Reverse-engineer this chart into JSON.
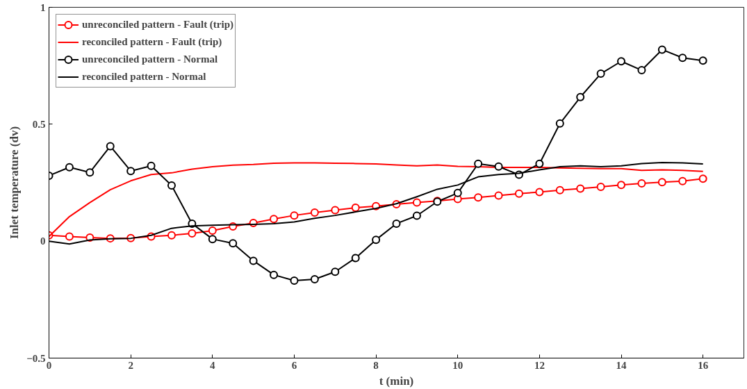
{
  "chart_data": {
    "type": "line",
    "xlabel": "t (min)",
    "ylabel": "Inlet temperature (dv)",
    "x": [
      0,
      0.5,
      1,
      1.5,
      2,
      2.5,
      3,
      3.5,
      4,
      4.5,
      5,
      5.5,
      6,
      6.5,
      7,
      7.5,
      8,
      8.5,
      9,
      9.5,
      10,
      10.5,
      11,
      11.5,
      12,
      12.5,
      13,
      13.5,
      14,
      14.5,
      15,
      15.5,
      16
    ],
    "xlim": [
      0,
      17
    ],
    "xticks": [
      0,
      2,
      4,
      6,
      8,
      10,
      12,
      14,
      16
    ],
    "ylim": [
      -0.5,
      1
    ],
    "yticks": [
      -0.5,
      0,
      0.5,
      1
    ],
    "grid": false,
    "legend": "top left",
    "series": [
      {
        "name": "unreconciled pattern - Fault (trip)",
        "color": "#ff0000",
        "marker": "circle",
        "values": [
          0.025,
          0.02,
          0.015,
          0.012,
          0.013,
          0.02,
          0.025,
          0.033,
          0.045,
          0.063,
          0.078,
          0.095,
          0.11,
          0.122,
          0.133,
          0.143,
          0.15,
          0.158,
          0.165,
          0.172,
          0.18,
          0.187,
          0.195,
          0.203,
          0.21,
          0.218,
          0.225,
          0.232,
          0.24,
          0.247,
          0.252,
          0.257,
          0.267
        ]
      },
      {
        "name": "reconciled pattern - Fault (trip)",
        "color": "#ff0000",
        "marker": "none",
        "values": [
          0.02,
          0.105,
          0.165,
          0.22,
          0.258,
          0.285,
          0.292,
          0.308,
          0.318,
          0.325,
          0.328,
          0.333,
          0.335,
          0.335,
          0.333,
          0.332,
          0.33,
          0.326,
          0.322,
          0.326,
          0.32,
          0.318,
          0.315,
          0.315,
          0.315,
          0.313,
          0.312,
          0.31,
          0.31,
          0.303,
          0.305,
          0.303,
          0.298
        ]
      },
      {
        "name": "unreconciled pattern - Normal",
        "color": "#000000",
        "marker": "circle",
        "values": [
          0.28,
          0.316,
          0.294,
          0.406,
          0.3,
          0.322,
          0.238,
          0.075,
          0.009,
          -0.009,
          -0.084,
          -0.144,
          -0.169,
          -0.163,
          -0.131,
          -0.072,
          0.006,
          0.075,
          0.109,
          0.169,
          0.206,
          0.331,
          0.319,
          0.284,
          0.331,
          0.503,
          0.616,
          0.716,
          0.769,
          0.731,
          0.819,
          0.784,
          0.772
        ]
      },
      {
        "name": "reconciled pattern - Normal",
        "color": "#000000",
        "marker": "none",
        "values": [
          0,
          -0.012,
          0.005,
          0.01,
          0.012,
          0.025,
          0.055,
          0.065,
          0.068,
          0.07,
          0.072,
          0.075,
          0.082,
          0.098,
          0.11,
          0.125,
          0.14,
          0.16,
          0.19,
          0.222,
          0.24,
          0.275,
          0.285,
          0.29,
          0.305,
          0.318,
          0.322,
          0.318,
          0.322,
          0.332,
          0.336,
          0.335,
          0.33
        ]
      }
    ]
  }
}
